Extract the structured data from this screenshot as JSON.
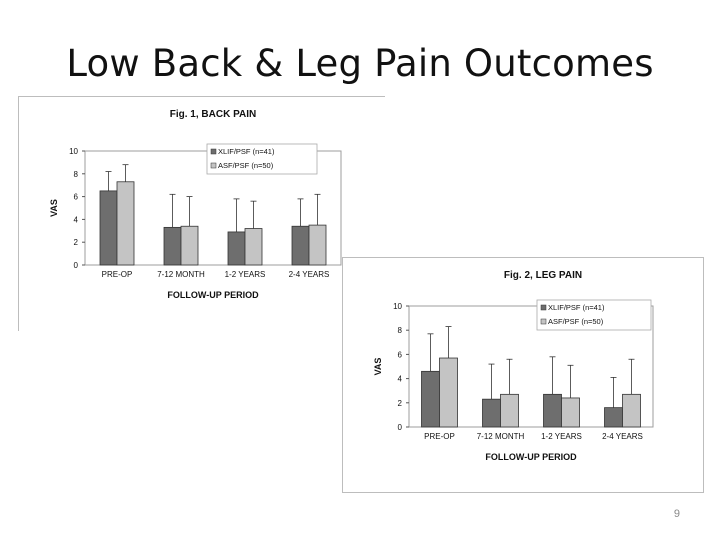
{
  "slide": {
    "title": "Low Back & Leg Pain Outcomes",
    "page_number": "9"
  },
  "colors": {
    "series1": "#6e6e6e",
    "series2": "#c4c4c4",
    "frame": "#9e9e9e",
    "bar_edge": "#333333"
  },
  "chart_data": [
    {
      "type": "bar",
      "title": "Fig. 1, BACK PAIN",
      "xlabel": "FOLLOW-UP PERIOD",
      "ylabel": "VAS",
      "ylim": [
        0,
        10
      ],
      "yticks": [
        "0",
        "2",
        "4",
        "6",
        "8",
        "10"
      ],
      "grid": false,
      "legend_position": "top-right",
      "categories": [
        "PRE-OP",
        "7-12 MONTH",
        "1-2 YEARS",
        "2-4 YEARS"
      ],
      "series": [
        {
          "name": "XLIF/PSF (n=41)",
          "values": [
            6.5,
            3.3,
            2.9,
            3.4
          ],
          "error_upper": [
            8.2,
            6.2,
            5.8,
            5.8
          ]
        },
        {
          "name": "ASF/PSF (n=50)",
          "values": [
            7.3,
            3.4,
            3.2,
            3.5
          ],
          "error_upper": [
            8.8,
            6.0,
            5.6,
            6.2
          ]
        }
      ]
    },
    {
      "type": "bar",
      "title": "Fig. 2, LEG PAIN",
      "xlabel": "FOLLOW-UP PERIOD",
      "ylabel": "VAS",
      "ylim": [
        0,
        10
      ],
      "yticks": [
        "0",
        "2",
        "4",
        "6",
        "8",
        "10"
      ],
      "grid": false,
      "legend_position": "top-right",
      "categories": [
        "PRE-OP",
        "7-12 MONTH",
        "1-2 YEARS",
        "2-4 YEARS"
      ],
      "series": [
        {
          "name": "XLIF/PSF (n=41)",
          "values": [
            4.6,
            2.3,
            2.7,
            1.6
          ],
          "error_upper": [
            7.7,
            5.2,
            5.8,
            4.1
          ]
        },
        {
          "name": "ASF/PSF (n=50)",
          "values": [
            5.7,
            2.7,
            2.4,
            2.7
          ],
          "error_upper": [
            8.3,
            5.6,
            5.1,
            5.6
          ]
        }
      ]
    }
  ]
}
